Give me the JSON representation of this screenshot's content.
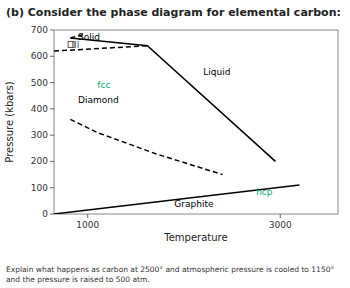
{
  "chart_data": {
    "type": "line",
    "title": "(b) Consider the phase diagram for elemental carbon:",
    "caption": "Explain what happens as carbon at 2500° and atmospheric pressure is cooled to 1150°\nand the pressure is raised to 500 atm.",
    "x_label": "Temperature",
    "y_label": "Pressure (kbars)",
    "xlim": [
      650,
      3600
    ],
    "ylim": [
      0,
      700
    ],
    "xticks": [
      1000,
      3000
    ],
    "yticks": [
      0,
      100,
      200,
      300,
      400,
      500,
      600,
      700
    ],
    "grid": false,
    "series": [
      {
        "x": [
          650,
          1620
        ],
        "values": [
          620,
          640
        ],
        "color": "#000000",
        "line_style": "dashed"
      },
      {
        "x": [
          820,
          1620,
          2950
        ],
        "values": [
          670,
          640,
          200
        ],
        "color": "#000000",
        "line_style": "solid"
      },
      {
        "x": [
          820,
          980
        ],
        "values": [
          670,
          685
        ],
        "color": "#000000",
        "line_style": "dashed"
      },
      {
        "x": [
          820,
          1100,
          1700,
          2400
        ],
        "values": [
          360,
          310,
          230,
          150
        ],
        "color": "#000000",
        "line_style": "dashed"
      },
      {
        "x": [
          650,
          3200
        ],
        "values": [
          0,
          110
        ],
        "color": "#000000",
        "line_style": "solid"
      },
      {
        "type": "scatter",
        "x": [
          828
        ],
        "values": [
          645
        ],
        "color": "#555555",
        "marker": "square"
      }
    ],
    "annotations": [
      {
        "text": "Solid",
        "x": 900,
        "y": 672,
        "color": "#000000"
      },
      {
        "text": "III",
        "x": 830,
        "y": 640,
        "color": "#555555"
      },
      {
        "text": "Liquid",
        "x": 2200,
        "y": 540,
        "color": "#000000"
      },
      {
        "text": "fcc",
        "x": 1100,
        "y": 490,
        "color": "#00aa77"
      },
      {
        "text": "Diamond",
        "x": 900,
        "y": 430,
        "color": "#000000"
      },
      {
        "text": "Graphite",
        "x": 1900,
        "y": 38,
        "color": "#000000"
      },
      {
        "text": "hcp",
        "x": 2750,
        "y": 82,
        "color": "#00aa77"
      }
    ]
  }
}
